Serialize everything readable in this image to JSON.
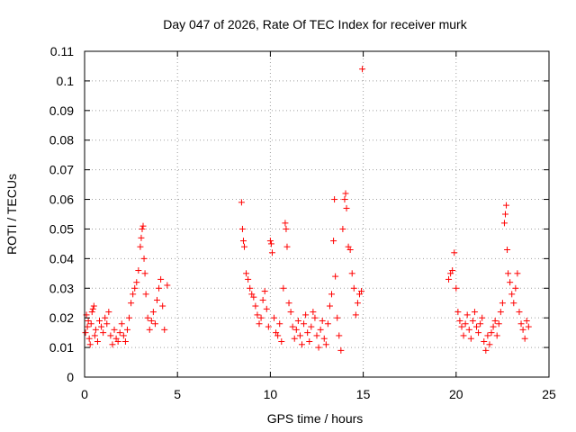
{
  "chart_data": {
    "type": "scatter",
    "title": "Day 047 of 2026, Rate Of TEC Index for receiver murk",
    "xlabel": "GPS time / hours",
    "ylabel": "ROTI / TECUs",
    "xlim": [
      0,
      25
    ],
    "ylim": [
      0,
      0.11
    ],
    "x_ticks": [
      "0",
      "5",
      "10",
      "15",
      "20",
      "25"
    ],
    "y_ticks": [
      "0",
      "0.01",
      "0.02",
      "0.03",
      "0.04",
      "0.05",
      "0.06",
      "0.07",
      "0.08",
      "0.09",
      "0.1",
      "0.11"
    ],
    "grid": true,
    "marker": "+",
    "color": "#ff0000",
    "series": [
      {
        "points": [
          [
            0.05,
            0.015
          ],
          [
            0.1,
            0.021
          ],
          [
            0.15,
            0.017
          ],
          [
            0.2,
            0.019
          ],
          [
            0.25,
            0.013
          ],
          [
            0.3,
            0.011
          ],
          [
            0.35,
            0.018
          ],
          [
            0.4,
            0.022
          ],
          [
            0.45,
            0.023
          ],
          [
            0.5,
            0.024
          ],
          [
            0.55,
            0.014
          ],
          [
            0.6,
            0.016
          ],
          [
            0.7,
            0.012
          ],
          [
            0.8,
            0.019
          ],
          [
            0.9,
            0.017
          ],
          [
            1.0,
            0.015
          ],
          [
            1.1,
            0.02
          ],
          [
            1.2,
            0.018
          ],
          [
            1.3,
            0.022
          ],
          [
            1.4,
            0.014
          ],
          [
            1.5,
            0.011
          ],
          [
            1.6,
            0.016
          ],
          [
            1.7,
            0.013
          ],
          [
            1.8,
            0.012
          ],
          [
            1.9,
            0.015
          ],
          [
            2.0,
            0.018
          ],
          [
            2.1,
            0.014
          ],
          [
            2.2,
            0.012
          ],
          [
            2.3,
            0.016
          ],
          [
            2.4,
            0.02
          ],
          [
            2.5,
            0.025
          ],
          [
            2.6,
            0.028
          ],
          [
            2.7,
            0.03
          ],
          [
            2.8,
            0.032
          ],
          [
            2.9,
            0.036
          ],
          [
            3.0,
            0.044
          ],
          [
            3.05,
            0.047
          ],
          [
            3.1,
            0.05
          ],
          [
            3.15,
            0.051
          ],
          [
            3.2,
            0.04
          ],
          [
            3.25,
            0.035
          ],
          [
            3.3,
            0.028
          ],
          [
            3.4,
            0.02
          ],
          [
            3.5,
            0.016
          ],
          [
            3.6,
            0.019
          ],
          [
            3.7,
            0.022
          ],
          [
            3.8,
            0.018
          ],
          [
            3.9,
            0.026
          ],
          [
            4.0,
            0.03
          ],
          [
            4.1,
            0.033
          ],
          [
            4.2,
            0.024
          ],
          [
            4.3,
            0.016
          ],
          [
            4.45,
            0.031
          ],
          [
            8.45,
            0.059
          ],
          [
            8.5,
            0.05
          ],
          [
            8.55,
            0.046
          ],
          [
            8.6,
            0.044
          ],
          [
            8.7,
            0.035
          ],
          [
            8.8,
            0.033
          ],
          [
            8.9,
            0.03
          ],
          [
            9.0,
            0.028
          ],
          [
            9.1,
            0.027
          ],
          [
            9.2,
            0.024
          ],
          [
            9.3,
            0.021
          ],
          [
            9.4,
            0.018
          ],
          [
            9.5,
            0.02
          ],
          [
            9.6,
            0.026
          ],
          [
            9.7,
            0.029
          ],
          [
            9.8,
            0.023
          ],
          [
            9.9,
            0.017
          ],
          [
            10.0,
            0.046
          ],
          [
            10.05,
            0.045
          ],
          [
            10.1,
            0.042
          ],
          [
            10.2,
            0.02
          ],
          [
            10.3,
            0.015
          ],
          [
            10.4,
            0.014
          ],
          [
            10.5,
            0.018
          ],
          [
            10.6,
            0.012
          ],
          [
            10.7,
            0.03
          ],
          [
            10.8,
            0.052
          ],
          [
            10.85,
            0.05
          ],
          [
            10.9,
            0.044
          ],
          [
            11.0,
            0.025
          ],
          [
            11.1,
            0.022
          ],
          [
            11.2,
            0.017
          ],
          [
            11.3,
            0.013
          ],
          [
            11.4,
            0.016
          ],
          [
            11.5,
            0.019
          ],
          [
            11.6,
            0.014
          ],
          [
            11.7,
            0.011
          ],
          [
            11.8,
            0.018
          ],
          [
            11.9,
            0.021
          ],
          [
            12.0,
            0.015
          ],
          [
            12.1,
            0.012
          ],
          [
            12.2,
            0.017
          ],
          [
            12.3,
            0.022
          ],
          [
            12.4,
            0.02
          ],
          [
            12.5,
            0.014
          ],
          [
            12.6,
            0.01
          ],
          [
            12.7,
            0.016
          ],
          [
            12.8,
            0.019
          ],
          [
            12.9,
            0.013
          ],
          [
            13.0,
            0.011
          ],
          [
            13.1,
            0.018
          ],
          [
            13.2,
            0.024
          ],
          [
            13.3,
            0.028
          ],
          [
            13.4,
            0.046
          ],
          [
            13.45,
            0.06
          ],
          [
            13.5,
            0.034
          ],
          [
            13.6,
            0.02
          ],
          [
            13.7,
            0.014
          ],
          [
            13.8,
            0.009
          ],
          [
            13.9,
            0.05
          ],
          [
            14.0,
            0.06
          ],
          [
            14.05,
            0.062
          ],
          [
            14.1,
            0.057
          ],
          [
            14.2,
            0.044
          ],
          [
            14.3,
            0.043
          ],
          [
            14.4,
            0.035
          ],
          [
            14.5,
            0.03
          ],
          [
            14.6,
            0.021
          ],
          [
            14.7,
            0.025
          ],
          [
            14.8,
            0.028
          ],
          [
            14.9,
            0.029
          ],
          [
            14.95,
            0.104
          ],
          [
            19.6,
            0.033
          ],
          [
            19.7,
            0.035
          ],
          [
            19.8,
            0.036
          ],
          [
            19.9,
            0.042
          ],
          [
            20.0,
            0.03
          ],
          [
            20.1,
            0.022
          ],
          [
            20.2,
            0.019
          ],
          [
            20.3,
            0.017
          ],
          [
            20.4,
            0.014
          ],
          [
            20.5,
            0.018
          ],
          [
            20.6,
            0.021
          ],
          [
            20.7,
            0.016
          ],
          [
            20.8,
            0.013
          ],
          [
            20.9,
            0.019
          ],
          [
            21.0,
            0.022
          ],
          [
            21.1,
            0.017
          ],
          [
            21.2,
            0.015
          ],
          [
            21.3,
            0.018
          ],
          [
            21.4,
            0.02
          ],
          [
            21.5,
            0.012
          ],
          [
            21.6,
            0.009
          ],
          [
            21.7,
            0.014
          ],
          [
            21.8,
            0.011
          ],
          [
            21.9,
            0.015
          ],
          [
            22.0,
            0.017
          ],
          [
            22.1,
            0.019
          ],
          [
            22.2,
            0.014
          ],
          [
            22.3,
            0.018
          ],
          [
            22.4,
            0.022
          ],
          [
            22.5,
            0.025
          ],
          [
            22.6,
            0.052
          ],
          [
            22.65,
            0.055
          ],
          [
            22.7,
            0.058
          ],
          [
            22.75,
            0.043
          ],
          [
            22.8,
            0.035
          ],
          [
            22.9,
            0.032
          ],
          [
            23.0,
            0.028
          ],
          [
            23.1,
            0.025
          ],
          [
            23.2,
            0.03
          ],
          [
            23.3,
            0.035
          ],
          [
            23.4,
            0.022
          ],
          [
            23.5,
            0.018
          ],
          [
            23.6,
            0.016
          ],
          [
            23.7,
            0.013
          ],
          [
            23.8,
            0.019
          ],
          [
            23.9,
            0.017
          ]
        ]
      }
    ]
  }
}
